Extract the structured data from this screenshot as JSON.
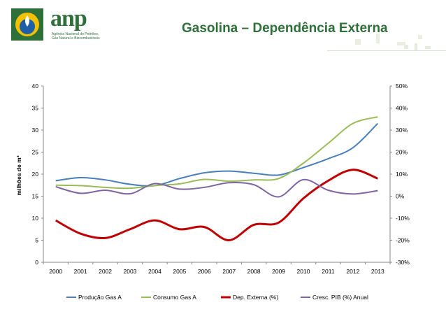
{
  "header": {
    "title": "Gasolina – Dependência Externa",
    "logo_text": "anp",
    "logo_sub": "Agência Nacional do Petróleo, Gás Natural e Biocombustíveis"
  },
  "colors": {
    "brand_green": "#2f6f3a",
    "brand_yellow": "#f2c100",
    "brand_blue": "#1f5fa8"
  },
  "chart_data": {
    "type": "line",
    "title": "",
    "xlabel": "",
    "ylabel": "milhões de m³",
    "categories": [
      "2000",
      "2001",
      "2002",
      "2003",
      "2004",
      "2005",
      "2006",
      "2007",
      "2008",
      "2009",
      "2010",
      "2011",
      "2012",
      "2013"
    ],
    "left_axis": {
      "ylim": [
        0,
        40
      ],
      "ticks": [
        "0",
        "5",
        "10",
        "15",
        "20",
        "25",
        "30",
        "35",
        "40"
      ]
    },
    "right_axis": {
      "ylim": [
        -30,
        50
      ],
      "ticks": [
        "-30%",
        "-20%",
        "-10%",
        "0%",
        "10%",
        "20%",
        "30%",
        "40%",
        "50%"
      ]
    },
    "series": [
      {
        "name": "Produção Gas A",
        "axis": "left",
        "color": "#4a7ebb",
        "values": [
          18.5,
          19.2,
          18.7,
          17.7,
          17.4,
          19.0,
          20.3,
          20.7,
          20.2,
          19.8,
          21.5,
          23.5,
          26.0,
          31.5
        ]
      },
      {
        "name": "Consumo Gas A",
        "axis": "left",
        "color": "#9bbb59",
        "values": [
          17.5,
          17.4,
          17.0,
          16.8,
          17.4,
          17.8,
          18.8,
          18.4,
          18.7,
          19.0,
          22.5,
          27.0,
          31.5,
          33.0
        ]
      },
      {
        "name": "Dep. Externa (%)",
        "axis": "right",
        "color": "#c00000",
        "values": [
          -11,
          -17,
          -19,
          -15,
          -11,
          -15,
          -14,
          -20,
          -13,
          -12,
          -1,
          7,
          12,
          8
        ]
      },
      {
        "name": "Cresc. PIB (%) Anual",
        "axis": "right",
        "color": "#8064a2",
        "values": [
          4.3,
          1.3,
          2.7,
          1.1,
          5.7,
          3.2,
          4.0,
          6.1,
          5.2,
          -0.3,
          7.5,
          2.7,
          1.0,
          2.5
        ]
      }
    ],
    "legend_position": "bottom",
    "grid": false
  }
}
